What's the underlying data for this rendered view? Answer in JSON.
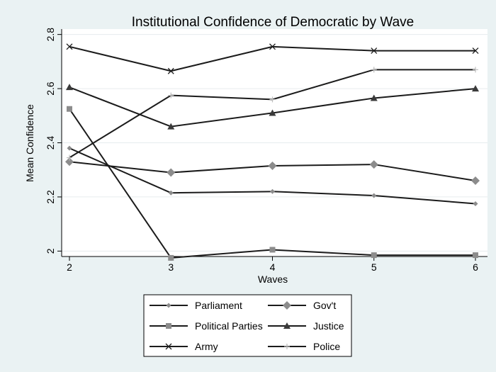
{
  "chart_data": {
    "type": "line",
    "title": "Institutional Confidence of Democratic by Wave",
    "xlabel": "Waves",
    "ylabel": "Mean Confidence",
    "x": [
      2,
      3,
      4,
      5,
      6
    ],
    "xlim": [
      2,
      6
    ],
    "ylim": [
      1.98,
      2.82
    ],
    "xticks": [
      "2",
      "3",
      "4",
      "5",
      "6"
    ],
    "yticks": [
      "2",
      "2.2",
      "2.4",
      "2.6",
      "2.8"
    ],
    "ytick_values": [
      2.0,
      2.2,
      2.4,
      2.6,
      2.8
    ],
    "grid": true,
    "legend_position": "bottom",
    "series": [
      {
        "name": "Parliament",
        "marker": "diamond-small",
        "values": [
          2.38,
          2.215,
          2.22,
          2.205,
          2.175
        ]
      },
      {
        "name": "Gov't",
        "marker": "diamond",
        "values": [
          2.33,
          2.29,
          2.315,
          2.32,
          2.26
        ]
      },
      {
        "name": "Political Parties",
        "marker": "square",
        "values": [
          2.525,
          1.975,
          2.005,
          1.985,
          1.985
        ]
      },
      {
        "name": "Justice",
        "marker": "triangle",
        "values": [
          2.605,
          2.46,
          2.51,
          2.565,
          2.6
        ]
      },
      {
        "name": "Army",
        "marker": "x",
        "values": [
          2.755,
          2.665,
          2.755,
          2.74,
          2.74
        ]
      },
      {
        "name": "Police",
        "marker": "plus",
        "values": [
          2.345,
          2.575,
          2.56,
          2.67,
          2.67
        ]
      }
    ]
  }
}
